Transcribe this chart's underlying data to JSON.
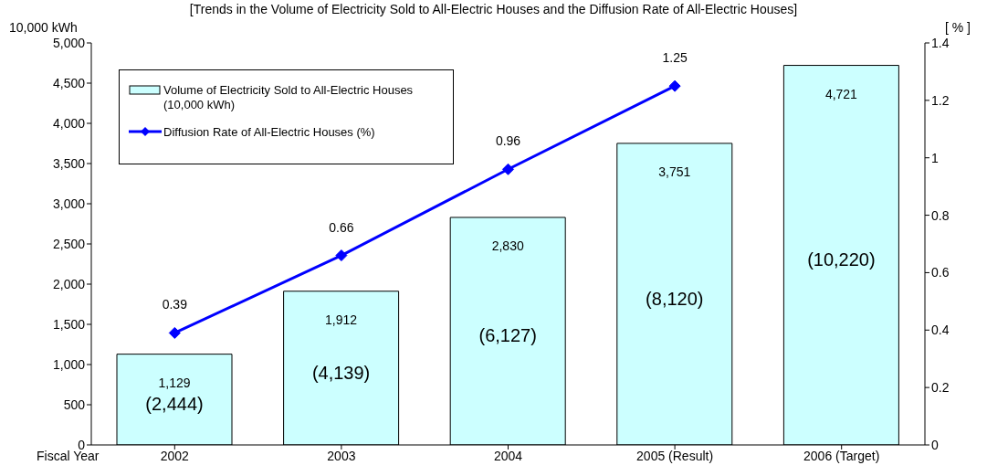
{
  "chart_data": {
    "type": "bar",
    "title": "[Trends in the Volume of Electricity Sold to All-Electric Houses and the Diffusion Rate of All-Electric Houses]",
    "ylabel": "10,000 kWh",
    "y2label": "[ % ]",
    "xlabel": "Fiscal Year",
    "categories": [
      "2002",
      "2003",
      "2004",
      "2005 (Result)",
      "2006 (Target)"
    ],
    "series": [
      {
        "name": "Volume of Electricity Sold to All-Electric Houses (10,000 kWh)",
        "color": "#ccffff",
        "values": [
          1129,
          1912,
          2830,
          3751,
          4721
        ],
        "value_labels": [
          "1,129",
          "1,912",
          "2,830",
          "3,751",
          "4,721"
        ]
      },
      {
        "name": "Diffusion Rate of All-Electric Houses (%)",
        "type": "line",
        "axis": "y2",
        "color": "#0000ff",
        "values": [
          0.39,
          0.66,
          0.96,
          1.25,
          null
        ],
        "value_labels": [
          "0.39",
          "0.66",
          "0.96",
          "1.25",
          null
        ]
      }
    ],
    "annotations": [
      "(2,444)",
      "(4,139)",
      "(6,127)",
      "(8,120)",
      "(10,220)"
    ],
    "ylim": [
      0,
      5000
    ],
    "yticks": [
      0,
      {
        "value": 500,
        "label": "500"
      },
      {
        "value": 1000,
        "label": "1,000"
      },
      {
        "value": 1500,
        "label": "1,500"
      },
      {
        "value": 2000,
        "label": "2,000"
      },
      {
        "value": 2500,
        "label": "2,500"
      },
      {
        "value": 3000,
        "label": "3,000"
      },
      {
        "value": 3500,
        "label": "3,500"
      },
      {
        "value": 4000,
        "label": "4,000"
      },
      {
        "value": 4500,
        "label": "4,500"
      },
      {
        "value": 5000,
        "label": "5,000"
      }
    ],
    "y2lim": [
      0,
      1.4
    ],
    "y2ticks": [
      0,
      0.2,
      0.4,
      0.6,
      0.8,
      1,
      1.2,
      1.4
    ],
    "grid": false,
    "legend": "top left",
    "marker": "diamond"
  }
}
